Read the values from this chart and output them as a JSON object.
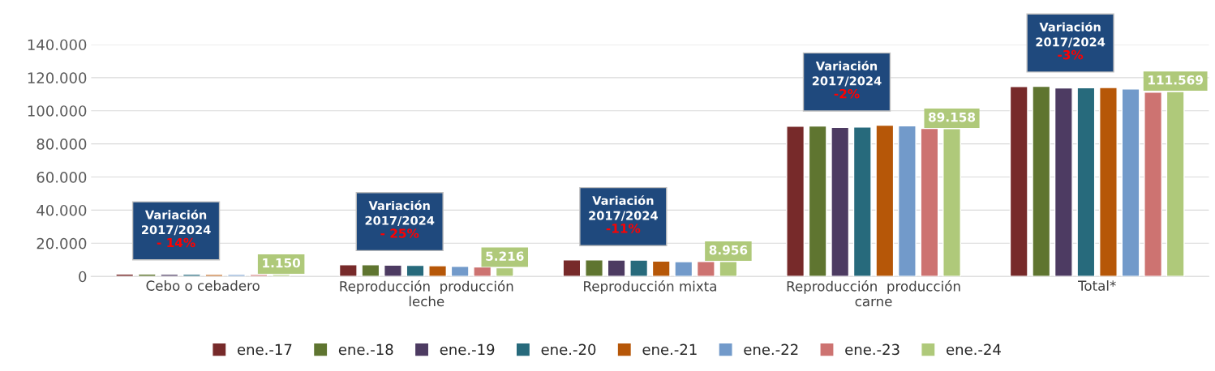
{
  "chart_data": {
    "type": "bar",
    "categories": [
      "Cebo o cebadero",
      "Reproducción  producción\nleche",
      "Reproducción mixta",
      "Reproducción  producción\ncarne",
      "Total*"
    ],
    "series": [
      {
        "name": "ene.-17",
        "color": "#772a2a",
        "values": [
          1400,
          7000,
          10000,
          90700,
          114600
        ]
      },
      {
        "name": "ene.-18",
        "color": "#5f7530",
        "values": [
          1400,
          7000,
          10000,
          90800,
          114800
        ]
      },
      {
        "name": "ene.-19",
        "color": "#4d3b62",
        "values": [
          1300,
          6800,
          9900,
          90000,
          113800
        ]
      },
      {
        "name": "ene.-20",
        "color": "#276a7c",
        "values": [
          1300,
          6700,
          9800,
          90200,
          113900
        ]
      },
      {
        "name": "ene.-21",
        "color": "#b65708",
        "values": [
          1200,
          6400,
          9200,
          91300,
          114000
        ]
      },
      {
        "name": "ene.-22",
        "color": "#729aca",
        "values": [
          1200,
          6100,
          8900,
          90900,
          113200
        ]
      },
      {
        "name": "ene.-23",
        "color": "#cd7371",
        "values": [
          1200,
          5700,
          9000,
          89300,
          111200
        ]
      },
      {
        "name": "ene.-24",
        "color": "#afc97a",
        "values": [
          1150,
          5216,
          8956,
          89158,
          111569
        ],
        "value_labels": [
          "1.150",
          "5.216",
          "8.956",
          "89.158",
          "111.569"
        ]
      }
    ],
    "ylim": [
      0,
      140000
    ],
    "yticks": [
      {
        "value": 0,
        "label": "0"
      },
      {
        "value": 20000,
        "label": "20.000"
      },
      {
        "value": 40000,
        "label": "40.000"
      },
      {
        "value": 60000,
        "label": "60.000"
      },
      {
        "value": 80000,
        "label": "80.000"
      },
      {
        "value": 100000,
        "label": "100.000"
      },
      {
        "value": 120000,
        "label": "120.000"
      },
      {
        "value": 140000,
        "label": "140.000"
      }
    ],
    "grid": "y",
    "legend": "bottom",
    "annotations": [
      "Variación\n2017/2024",
      "- 14%",
      "Variación\n2017/2024",
      "- 25%",
      "Variación\n2017/2024",
      "-11%",
      "Variación\n2017/2024",
      "-2%",
      "Variación\n2017/2024",
      "-3%"
    ]
  }
}
